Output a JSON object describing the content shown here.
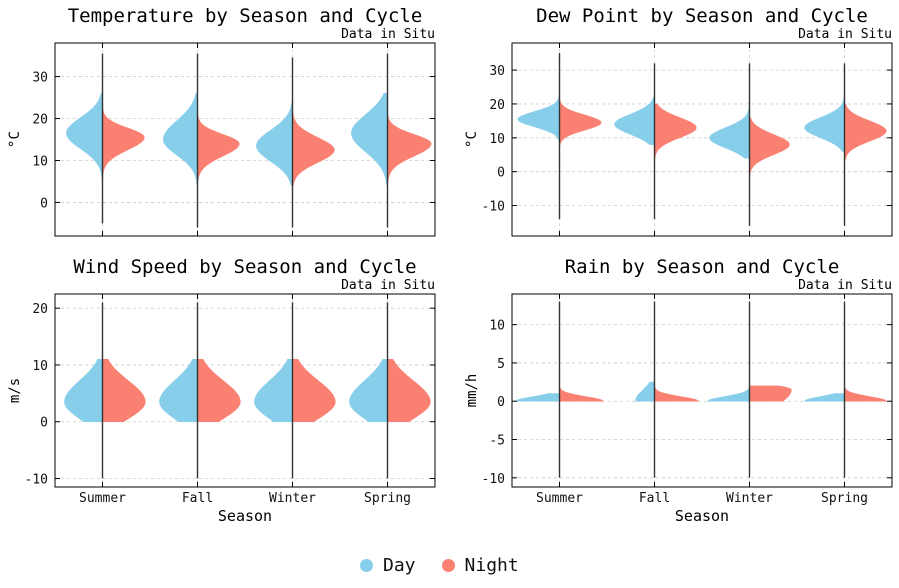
{
  "colors": {
    "day": "#87CEEB",
    "night": "#FA8072",
    "axis": "#000000",
    "grid": "#cccccc",
    "whisker": "#333333"
  },
  "legend": {
    "day_label": "Day",
    "night_label": "Night"
  },
  "chart_data": [
    {
      "type": "violin",
      "title": "Temperature by Season and Cycle",
      "subtitle": "Data in Situ",
      "xlabel": "",
      "ylabel": "°C",
      "categories": [
        "Summer",
        "Fall",
        "Winter",
        "Spring"
      ],
      "show_xticklabels": false,
      "ylim": [
        -8,
        38
      ],
      "yticks": [
        0,
        10,
        20,
        30
      ],
      "grid": true,
      "series": [
        {
          "name": "Day",
          "values": [
            {
              "min": 5,
              "q1": 14,
              "median": 16.5,
              "q3": 19,
              "max": 26,
              "max_width": 0.38
            },
            {
              "min": 4,
              "q1": 12.5,
              "median": 15,
              "q3": 18,
              "max": 26,
              "max_width": 0.36
            },
            {
              "min": 4,
              "q1": 11,
              "median": 13.5,
              "q3": 16,
              "max": 24,
              "max_width": 0.38
            },
            {
              "min": 4,
              "q1": 13.5,
              "median": 16.5,
              "q3": 19.5,
              "max": 26,
              "max_width": 0.38
            }
          ]
        },
        {
          "name": "Night",
          "values": [
            {
              "min": 5,
              "q1": 13.5,
              "median": 15.5,
              "q3": 17,
              "max": 26,
              "max_width": 0.44
            },
            {
              "min": 4,
              "q1": 12,
              "median": 14,
              "q3": 15.5,
              "max": 26,
              "max_width": 0.44
            },
            {
              "min": 4,
              "q1": 10.5,
              "median": 12.5,
              "q3": 14.5,
              "max": 22,
              "max_width": 0.44
            },
            {
              "min": 4,
              "q1": 12,
              "median": 14,
              "q3": 15.5,
              "max": 26,
              "max_width": 0.46
            }
          ]
        }
      ],
      "whiskers": [
        [
          -5,
          35.5
        ],
        [
          -6,
          35.5
        ],
        [
          -6,
          34.5
        ],
        [
          -6,
          35.5
        ]
      ]
    },
    {
      "type": "violin",
      "title": "Dew Point by Season and Cycle",
      "subtitle": "Data in Situ",
      "xlabel": "",
      "ylabel": "°C",
      "categories": [
        "Summer",
        "Fall",
        "Winter",
        "Spring"
      ],
      "show_xticklabels": false,
      "ylim": [
        -19,
        38
      ],
      "yticks": [
        -10,
        0,
        10,
        20,
        30
      ],
      "grid": true,
      "series": [
        {
          "name": "Day",
          "values": [
            {
              "min": -5,
              "q1": 14,
              "median": 15.5,
              "q3": 17,
              "max": 25,
              "max_width": 0.44
            },
            {
              "min": 8,
              "q1": 12,
              "median": 14,
              "q3": 16,
              "max": 22,
              "max_width": 0.42
            },
            {
              "min": 4,
              "q1": 8,
              "median": 10,
              "q3": 12,
              "max": 22,
              "max_width": 0.42
            },
            {
              "min": 6,
              "q1": 11,
              "median": 13,
              "q3": 15,
              "max": 22,
              "max_width": 0.42
            }
          ]
        },
        {
          "name": "Night",
          "values": [
            {
              "min": -5,
              "q1": 13,
              "median": 14.5,
              "q3": 16,
              "max": 24,
              "max_width": 0.44
            },
            {
              "min": -6,
              "q1": 11,
              "median": 13,
              "q3": 15,
              "max": 20,
              "max_width": 0.44
            },
            {
              "min": -6,
              "q1": 6,
              "median": 8,
              "q3": 10,
              "max": 16,
              "max_width": 0.42
            },
            {
              "min": -6,
              "q1": 10,
              "median": 12,
              "q3": 14,
              "max": 20,
              "max_width": 0.44
            }
          ]
        }
      ],
      "whiskers": [
        [
          -14,
          35
        ],
        [
          -14,
          32
        ],
        [
          -16,
          32
        ],
        [
          -16,
          32
        ]
      ]
    },
    {
      "type": "violin",
      "title": "Wind Speed by Season and Cycle",
      "subtitle": "Data in Situ",
      "xlabel": "Season",
      "ylabel": "m/s",
      "categories": [
        "Summer",
        "Fall",
        "Winter",
        "Spring"
      ],
      "show_xticklabels": true,
      "ylim": [
        -11.5,
        22.5
      ],
      "yticks": [
        -10,
        0,
        10,
        20
      ],
      "grid": true,
      "series": [
        {
          "name": "Day",
          "values": [
            {
              "min": 0,
              "q1": 1.5,
              "median": 3.5,
              "q3": 6,
              "max": 11,
              "max_width": 0.4
            },
            {
              "min": 0,
              "q1": 1.5,
              "median": 3.5,
              "q3": 6,
              "max": 11,
              "max_width": 0.4
            },
            {
              "min": 0,
              "q1": 1.5,
              "median": 3.5,
              "q3": 6,
              "max": 11,
              "max_width": 0.4
            },
            {
              "min": 0,
              "q1": 1.5,
              "median": 3.5,
              "q3": 6,
              "max": 11,
              "max_width": 0.4
            }
          ]
        },
        {
          "name": "Night",
          "values": [
            {
              "min": 0,
              "q1": 1.5,
              "median": 3.5,
              "q3": 6,
              "max": 11,
              "max_width": 0.45
            },
            {
              "min": 0,
              "q1": 1.5,
              "median": 3.5,
              "q3": 6,
              "max": 11,
              "max_width": 0.45
            },
            {
              "min": 0,
              "q1": 1.5,
              "median": 3.5,
              "q3": 6,
              "max": 11,
              "max_width": 0.45
            },
            {
              "min": 0,
              "q1": 1.5,
              "median": 3.5,
              "q3": 6,
              "max": 11,
              "max_width": 0.45
            }
          ]
        }
      ],
      "whiskers": [
        [
          -10,
          21
        ],
        [
          -10,
          21
        ],
        [
          -10,
          21
        ],
        [
          -10,
          21
        ]
      ]
    },
    {
      "type": "violin",
      "title": "Rain by Season and Cycle",
      "subtitle": "Data in Situ",
      "xlabel": "Season",
      "ylabel": "mm/h",
      "categories": [
        "Summer",
        "Fall",
        "Winter",
        "Spring"
      ],
      "show_xticklabels": true,
      "ylim": [
        -11.2,
        14
      ],
      "yticks": [
        -10,
        -5,
        0,
        5,
        10
      ],
      "grid": true,
      "series": [
        {
          "name": "Day",
          "values": [
            {
              "min": 0,
              "q1": 0,
              "median": 0,
              "q3": 0,
              "max": 1,
              "max_width": 0.46
            },
            {
              "min": 0,
              "q1": 0,
              "median": 0,
              "q3": 1,
              "max": 2.5,
              "max_width": 0.2
            },
            {
              "min": 0,
              "q1": 0,
              "median": 0,
              "q3": 0,
              "max": 3,
              "max_width": 0.44
            },
            {
              "min": 0,
              "q1": 0,
              "median": 0,
              "q3": 0,
              "max": 1,
              "max_width": 0.42
            }
          ]
        },
        {
          "name": "Night",
          "values": [
            {
              "min": 0,
              "q1": 0,
              "median": 0,
              "q3": 0,
              "max": 3,
              "max_width": 0.46
            },
            {
              "min": 0,
              "q1": 0,
              "median": 0,
              "q3": 0,
              "max": 3,
              "max_width": 0.46
            },
            {
              "min": 0,
              "q1": 0,
              "median": 1.5,
              "q3": 1.5,
              "max": 2,
              "max_width": 0.44
            },
            {
              "min": 0,
              "q1": 0,
              "median": 0,
              "q3": 0,
              "max": 3,
              "max_width": 0.44
            }
          ]
        }
      ],
      "whiskers": [
        [
          -10,
          13
        ],
        [
          -10,
          13
        ],
        [
          -10,
          13
        ],
        [
          -10,
          13
        ]
      ]
    }
  ]
}
